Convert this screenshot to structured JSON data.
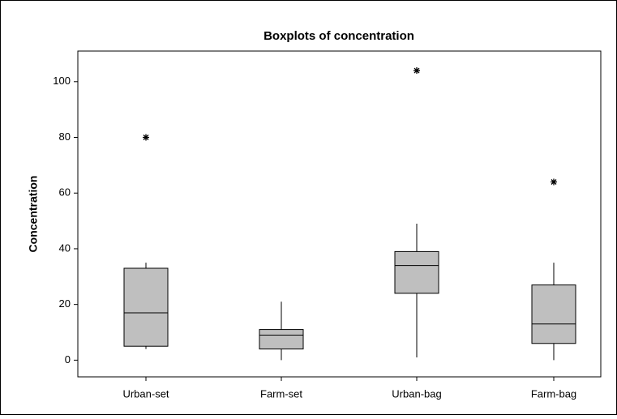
{
  "chart_data": {
    "type": "box",
    "title": "Boxplots of concentration",
    "y_label": "Concentration",
    "categories": [
      "Urban-set",
      "Farm-set",
      "Urban-bag",
      "Farm-bag"
    ],
    "low": [
      4,
      0,
      1,
      0
    ],
    "q1": [
      5,
      4,
      24,
      6
    ],
    "median": [
      17,
      9,
      34,
      13
    ],
    "q3": [
      33,
      11,
      39,
      27
    ],
    "high": [
      35,
      21,
      49,
      35
    ],
    "outliers": [
      [
        80
      ],
      [],
      [
        104
      ],
      [
        64
      ]
    ],
    "color": "#bfbfbf",
    "ylim": [
      -6,
      111
    ],
    "yticks": [
      0,
      20,
      40,
      60,
      80,
      100
    ]
  }
}
